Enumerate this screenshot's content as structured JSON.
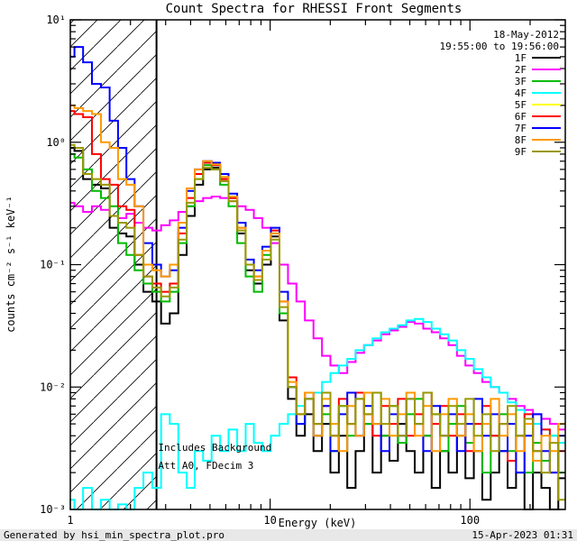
{
  "footer": {
    "generated_by": "Generated by hsi_min_spectra_plot.pro",
    "timestamp": "15-Apr-2023 01:31"
  },
  "chart_data": {
    "type": "line",
    "title": "Count Spectra for RHESSI Front Segments",
    "xlabel": "Energy (keV)",
    "ylabel": "counts cm⁻² s⁻¹ keV⁻¹",
    "xscale": "log",
    "yscale": "log",
    "xlim": [
      1,
      300
    ],
    "ylim": [
      0.001,
      10
    ],
    "grid": false,
    "line_style": "histogram-steps",
    "x_ticks": [
      {
        "value": 1,
        "label": "1"
      },
      {
        "value": 10,
        "label": "10"
      },
      {
        "value": 100,
        "label": "100"
      }
    ],
    "y_ticks": [
      {
        "value": 10,
        "label": "10¹"
      },
      {
        "value": 1,
        "label": "10⁰"
      },
      {
        "value": 0.1,
        "label": "10⁻¹"
      },
      {
        "value": 0.01,
        "label": "10⁻²"
      },
      {
        "value": 0.001,
        "label": "10⁻³"
      }
    ],
    "legend_position": "top-right",
    "legend_header": [
      "18-May-2012",
      "19:55:00 to 19:56:00"
    ],
    "annotations": [
      {
        "text": "Includes Background",
        "color": "#00e0e0",
        "x": 2.75,
        "y": 0.003
      },
      {
        "text": "Att A0, FDecim 3",
        "color": "#00e0e0",
        "x": 2.75,
        "y": 0.00215
      }
    ],
    "hatched_region": {
      "x_start": 1,
      "x_end": 2.7,
      "style": "diagonal-hatch"
    },
    "x": [
      1.0,
      1.1,
      1.22,
      1.35,
      1.5,
      1.65,
      1.82,
      2.0,
      2.2,
      2.45,
      2.7,
      3.0,
      3.3,
      3.65,
      4.0,
      4.4,
      4.85,
      5.35,
      5.9,
      6.5,
      7.2,
      7.9,
      8.7,
      9.6,
      10.6,
      11.7,
      12.9,
      14.2,
      15.7,
      17.3,
      19.1,
      21.0,
      23.2,
      25.5,
      28.1,
      31.0,
      34.2,
      37.7,
      41.5,
      45.8,
      50.4,
      55.6,
      61.3,
      67.5,
      74.4,
      82.0,
      90.4,
      99.6,
      109.8,
      121.0,
      133.4,
      147.0,
      162.0,
      178.6,
      196.9,
      217.0,
      239.2,
      263.7,
      290.6
    ],
    "series": [
      {
        "name": "1F",
        "color": "#000000",
        "values": [
          0.9,
          0.85,
          0.5,
          0.45,
          0.42,
          0.2,
          0.18,
          0.17,
          0.1,
          0.06,
          0.05,
          0.033,
          0.04,
          0.12,
          0.25,
          0.45,
          0.6,
          0.62,
          0.5,
          0.35,
          0.18,
          0.09,
          0.07,
          0.1,
          0.17,
          0.035,
          0.008,
          0.004,
          0.006,
          0.003,
          0.005,
          0.002,
          0.004,
          0.0015,
          0.003,
          0.005,
          0.002,
          0.004,
          0.0025,
          0.005,
          0.003,
          0.002,
          0.004,
          0.0015,
          0.003,
          0.002,
          0.004,
          0.0018,
          0.003,
          0.0012,
          0.002,
          0.003,
          0.0015,
          0.002,
          0.001,
          0.002,
          0.0015,
          0.001,
          0.0018
        ]
      },
      {
        "name": "2F",
        "color": "#ff00ff",
        "values": [
          0.32,
          0.3,
          0.27,
          0.3,
          0.28,
          0.25,
          0.24,
          0.26,
          0.22,
          0.2,
          0.19,
          0.21,
          0.23,
          0.27,
          0.3,
          0.33,
          0.35,
          0.36,
          0.35,
          0.33,
          0.3,
          0.28,
          0.24,
          0.2,
          0.15,
          0.1,
          0.07,
          0.05,
          0.035,
          0.025,
          0.018,
          0.015,
          0.013,
          0.016,
          0.019,
          0.022,
          0.024,
          0.027,
          0.029,
          0.031,
          0.034,
          0.033,
          0.03,
          0.028,
          0.025,
          0.022,
          0.018,
          0.015,
          0.013,
          0.011,
          0.01,
          0.009,
          0.008,
          0.007,
          0.0065,
          0.006,
          0.0055,
          0.005,
          0.0045
        ]
      },
      {
        "name": "3F",
        "color": "#00bb00",
        "values": [
          0.8,
          0.75,
          0.6,
          0.4,
          0.35,
          0.3,
          0.15,
          0.12,
          0.09,
          0.07,
          0.06,
          0.05,
          0.06,
          0.15,
          0.3,
          0.5,
          0.65,
          0.6,
          0.45,
          0.3,
          0.15,
          0.08,
          0.06,
          0.12,
          0.18,
          0.04,
          0.01,
          0.005,
          0.008,
          0.004,
          0.006,
          0.003,
          0.007,
          0.004,
          0.008,
          0.005,
          0.009,
          0.004,
          0.007,
          0.0035,
          0.006,
          0.008,
          0.004,
          0.006,
          0.003,
          0.005,
          0.007,
          0.0035,
          0.005,
          0.002,
          0.004,
          0.006,
          0.003,
          0.004,
          0.002,
          0.0035,
          0.0025,
          0.004,
          0.002
        ]
      },
      {
        "name": "4F",
        "color": "#00ffff",
        "values": [
          0.0012,
          0.001,
          0.0015,
          0.001,
          0.0012,
          0.001,
          0.0011,
          0.001,
          0.0015,
          0.002,
          0.0015,
          0.006,
          0.005,
          0.002,
          0.0015,
          0.003,
          0.0025,
          0.004,
          0.003,
          0.0045,
          0.003,
          0.005,
          0.0035,
          0.003,
          0.004,
          0.005,
          0.006,
          0.007,
          0.008,
          0.009,
          0.011,
          0.013,
          0.015,
          0.017,
          0.02,
          0.022,
          0.025,
          0.028,
          0.03,
          0.032,
          0.035,
          0.036,
          0.034,
          0.03,
          0.027,
          0.024,
          0.02,
          0.017,
          0.014,
          0.012,
          0.01,
          0.009,
          0.0075,
          0.0065,
          0.0055,
          0.005,
          0.0045,
          0.004,
          0.0035
        ]
      },
      {
        "name": "5F",
        "color": "#ffff00",
        "values": []
      },
      {
        "name": "6F",
        "color": "#ff0000",
        "values": [
          1.8,
          1.7,
          1.6,
          0.8,
          0.5,
          0.45,
          0.3,
          0.28,
          0.12,
          0.08,
          0.07,
          0.06,
          0.07,
          0.18,
          0.35,
          0.55,
          0.68,
          0.65,
          0.5,
          0.35,
          0.2,
          0.1,
          0.08,
          0.13,
          0.19,
          0.05,
          0.012,
          0.006,
          0.009,
          0.005,
          0.007,
          0.004,
          0.008,
          0.005,
          0.009,
          0.006,
          0.004,
          0.007,
          0.005,
          0.008,
          0.004,
          0.006,
          0.009,
          0.005,
          0.007,
          0.004,
          0.006,
          0.003,
          0.005,
          0.007,
          0.004,
          0.005,
          0.0025,
          0.004,
          0.006,
          0.003,
          0.0045,
          0.002,
          0.003
        ]
      },
      {
        "name": "7F",
        "color": "#0000ff",
        "values": [
          5.0,
          6.0,
          4.5,
          3.0,
          2.8,
          1.5,
          0.9,
          0.5,
          0.3,
          0.15,
          0.1,
          0.08,
          0.09,
          0.2,
          0.4,
          0.6,
          0.7,
          0.68,
          0.55,
          0.38,
          0.22,
          0.11,
          0.09,
          0.14,
          0.2,
          0.06,
          0.01,
          0.005,
          0.008,
          0.004,
          0.007,
          0.003,
          0.006,
          0.009,
          0.004,
          0.007,
          0.005,
          0.003,
          0.006,
          0.004,
          0.008,
          0.005,
          0.003,
          0.007,
          0.004,
          0.006,
          0.003,
          0.005,
          0.008,
          0.004,
          0.006,
          0.003,
          0.005,
          0.002,
          0.004,
          0.006,
          0.003,
          0.002,
          0.004
        ]
      },
      {
        "name": "8F",
        "color": "#ff9900",
        "values": [
          2.0,
          1.9,
          1.8,
          1.7,
          1.0,
          0.9,
          0.5,
          0.45,
          0.3,
          0.1,
          0.09,
          0.08,
          0.1,
          0.22,
          0.42,
          0.6,
          0.7,
          0.66,
          0.52,
          0.36,
          0.2,
          0.1,
          0.08,
          0.13,
          0.18,
          0.05,
          0.011,
          0.006,
          0.009,
          0.004,
          0.008,
          0.005,
          0.003,
          0.007,
          0.004,
          0.009,
          0.005,
          0.008,
          0.004,
          0.006,
          0.009,
          0.004,
          0.007,
          0.003,
          0.006,
          0.008,
          0.004,
          0.006,
          0.003,
          0.005,
          0.008,
          0.004,
          0.006,
          0.003,
          0.005,
          0.0025,
          0.004,
          0.003,
          0.005
        ]
      },
      {
        "name": "9F",
        "color": "#999900",
        "values": [
          0.95,
          0.9,
          0.55,
          0.5,
          0.45,
          0.25,
          0.22,
          0.2,
          0.12,
          0.08,
          0.065,
          0.055,
          0.065,
          0.16,
          0.32,
          0.5,
          0.62,
          0.6,
          0.48,
          0.33,
          0.19,
          0.1,
          0.075,
          0.11,
          0.16,
          0.045,
          0.01,
          0.006,
          0.008,
          0.005,
          0.009,
          0.004,
          0.007,
          0.005,
          0.008,
          0.006,
          0.009,
          0.005,
          0.007,
          0.004,
          0.008,
          0.005,
          0.009,
          0.006,
          0.004,
          0.007,
          0.005,
          0.008,
          0.004,
          0.006,
          0.003,
          0.005,
          0.007,
          0.004,
          0.0055,
          0.003,
          0.002,
          0.0035,
          0.0012
        ]
      }
    ]
  }
}
